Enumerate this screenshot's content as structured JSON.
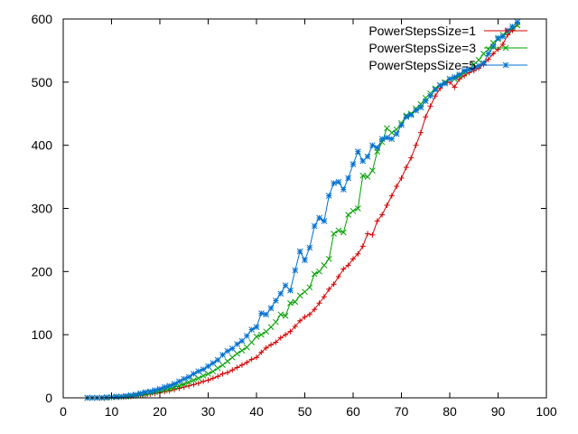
{
  "chart_data": {
    "type": "line",
    "xlim": [
      0,
      100
    ],
    "ylim": [
      0,
      600
    ],
    "xticks": [
      0,
      10,
      20,
      30,
      40,
      50,
      60,
      70,
      80,
      90,
      100
    ],
    "yticks": [
      0,
      100,
      200,
      300,
      400,
      500,
      600
    ],
    "grid": false,
    "legend_position": "top-right",
    "series": [
      {
        "name": "PowerStepsSize=1",
        "color": "#d40000",
        "marker": "plus",
        "x": [
          5,
          6,
          7,
          8,
          9,
          10,
          11,
          12,
          13,
          14,
          15,
          16,
          17,
          18,
          19,
          20,
          21,
          22,
          23,
          24,
          25,
          26,
          27,
          28,
          29,
          30,
          31,
          32,
          33,
          34,
          35,
          36,
          37,
          38,
          39,
          40,
          41,
          42,
          43,
          44,
          45,
          46,
          47,
          48,
          49,
          50,
          51,
          52,
          53,
          54,
          55,
          56,
          57,
          58,
          59,
          60,
          61,
          62,
          63,
          64,
          65,
          66,
          67,
          68,
          69,
          70,
          71,
          72,
          73,
          74,
          75,
          76,
          77,
          78,
          79,
          80,
          81,
          82,
          83,
          84,
          85,
          86,
          87,
          88,
          89,
          90,
          91,
          92,
          93,
          94
        ],
        "y": [
          0,
          0,
          0,
          0,
          0,
          0.5,
          1,
          1,
          1.5,
          2,
          3,
          4,
          5,
          6,
          7,
          8,
          10,
          11,
          13,
          15,
          17,
          19,
          21,
          23,
          26,
          28,
          31,
          34,
          38,
          40,
          44,
          48,
          52,
          56,
          61,
          64,
          72,
          79,
          84,
          88,
          95,
          100,
          105,
          113,
          122,
          128,
          132,
          140,
          150,
          160,
          172,
          180,
          192,
          204,
          210,
          220,
          228,
          240,
          260,
          258,
          280,
          290,
          305,
          320,
          335,
          348,
          365,
          380,
          400,
          420,
          445,
          462,
          478,
          490,
          498,
          500,
          492,
          505,
          510,
          515,
          518,
          522,
          528,
          536,
          545,
          552,
          560,
          575,
          582,
          592
        ]
      },
      {
        "name": "PowerStepsSize=3",
        "color": "#00a000",
        "marker": "x",
        "x": [
          5,
          6,
          7,
          8,
          9,
          10,
          11,
          12,
          13,
          14,
          15,
          16,
          17,
          18,
          19,
          20,
          21,
          22,
          23,
          24,
          25,
          26,
          27,
          28,
          29,
          30,
          31,
          32,
          33,
          34,
          35,
          36,
          37,
          38,
          39,
          40,
          41,
          42,
          43,
          44,
          45,
          46,
          47,
          48,
          49,
          50,
          51,
          52,
          53,
          54,
          55,
          56,
          57,
          58,
          59,
          60,
          61,
          62,
          63,
          64,
          65,
          66,
          67,
          68,
          69,
          70,
          71,
          72,
          73,
          74,
          75,
          76,
          77,
          78,
          79,
          80,
          81,
          82,
          83,
          84,
          85,
          86,
          87,
          88,
          89,
          90,
          91,
          92,
          93,
          94
        ],
        "y": [
          0,
          0,
          0,
          0,
          0,
          1,
          1,
          1.5,
          2,
          3,
          4,
          5,
          6,
          8,
          9,
          11,
          12,
          14,
          17,
          19,
          22,
          25,
          28,
          31,
          35,
          38,
          42,
          47,
          52,
          58,
          64,
          70,
          75,
          80,
          88,
          97,
          100,
          105,
          112,
          120,
          132,
          130,
          150,
          152,
          162,
          168,
          175,
          196,
          200,
          210,
          220,
          260,
          265,
          262,
          290,
          296,
          300,
          352,
          350,
          360,
          390,
          405,
          427,
          420,
          425,
          435,
          447,
          450,
          458,
          465,
          475,
          482,
          490,
          495,
          500,
          505,
          505,
          510,
          515,
          520,
          528,
          535,
          545,
          552,
          562,
          568,
          575,
          580,
          585,
          590
        ]
      },
      {
        "name": "PowerStepsSize=5",
        "color": "#0070d0",
        "marker": "star",
        "x": [
          5,
          6,
          7,
          8,
          9,
          10,
          11,
          12,
          13,
          14,
          15,
          16,
          17,
          18,
          19,
          20,
          21,
          22,
          23,
          24,
          25,
          26,
          27,
          28,
          29,
          30,
          31,
          32,
          33,
          34,
          35,
          36,
          37,
          38,
          39,
          40,
          41,
          42,
          43,
          44,
          45,
          46,
          47,
          48,
          49,
          50,
          51,
          52,
          53,
          54,
          55,
          56,
          57,
          58,
          59,
          60,
          61,
          62,
          63,
          64,
          65,
          66,
          67,
          68,
          69,
          70,
          71,
          72,
          73,
          74,
          75,
          76,
          77,
          78,
          79,
          80,
          81,
          82,
          83,
          84,
          85,
          86,
          87,
          88,
          89,
          90,
          91,
          92,
          93,
          94
        ],
        "y": [
          0,
          0,
          0,
          0,
          1,
          1,
          2,
          2,
          3,
          4,
          5,
          7,
          9,
          10,
          12,
          14,
          17,
          19,
          22,
          26,
          30,
          33,
          38,
          42,
          45,
          50,
          55,
          60,
          68,
          74,
          78,
          85,
          90,
          98,
          108,
          112,
          134,
          132,
          142,
          154,
          165,
          178,
          170,
          202,
          232,
          218,
          238,
          272,
          285,
          280,
          320,
          340,
          342,
          330,
          348,
          370,
          390,
          375,
          382,
          400,
          396,
          410,
          412,
          410,
          418,
          432,
          445,
          448,
          455,
          460,
          470,
          478,
          488,
          495,
          498,
          505,
          508,
          512,
          518,
          520,
          522,
          526,
          530,
          545,
          556,
          570,
          572,
          582,
          588,
          595
        ]
      }
    ]
  }
}
